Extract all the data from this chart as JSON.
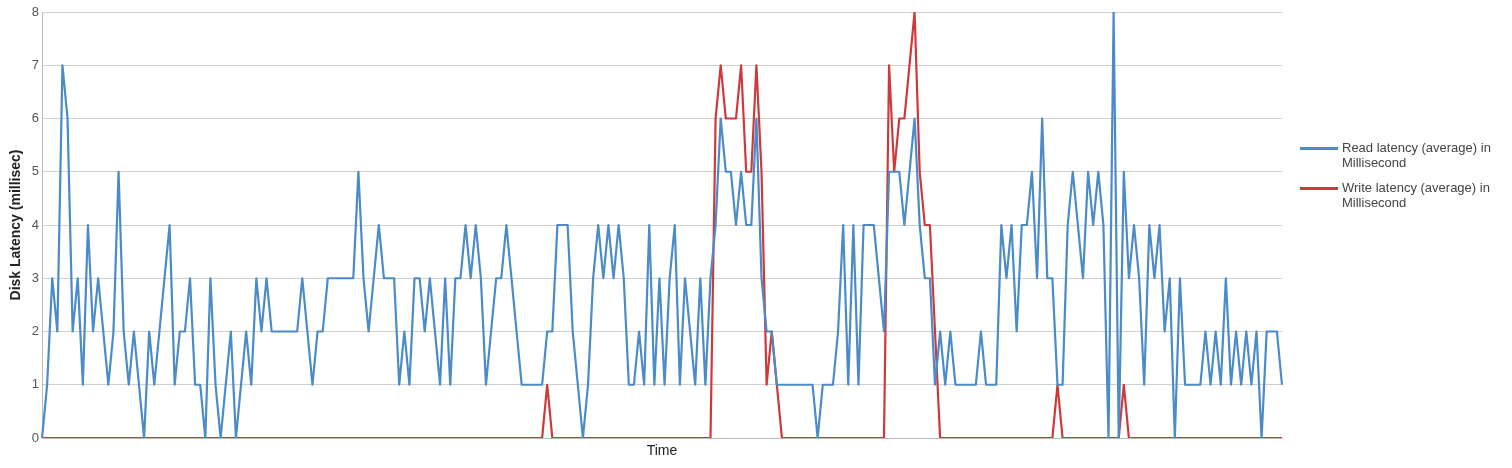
{
  "chart_data": {
    "type": "line",
    "xlabel": "Time",
    "ylabel": "Disk Latency (millisec)",
    "ylim": [
      0,
      8
    ],
    "yticks": [
      0,
      1,
      2,
      3,
      4,
      5,
      6,
      7,
      8
    ],
    "grid": "y",
    "legend": "right",
    "marker": "none",
    "line_style": "solid",
    "categories": [
      null,
      null,
      null,
      null,
      null,
      null,
      null,
      null,
      null,
      null,
      null,
      null,
      null,
      null,
      null,
      null,
      null,
      null,
      null,
      null,
      null,
      null,
      null,
      null,
      null,
      null,
      null,
      null,
      null,
      null,
      null,
      null,
      null,
      null,
      null,
      null,
      null,
      null,
      null,
      null,
      null,
      null,
      null,
      null,
      null,
      null,
      null,
      null,
      null,
      null,
      null,
      null,
      null,
      null,
      null,
      null,
      null,
      null,
      null,
      null,
      null,
      null,
      null,
      null,
      null,
      null,
      null,
      null,
      null,
      null,
      null,
      null,
      null,
      null,
      null,
      null,
      null,
      null,
      null,
      null,
      null,
      null,
      null,
      null,
      null,
      null,
      null,
      null,
      null,
      null,
      null,
      null,
      null,
      null,
      null,
      null,
      null,
      null,
      null,
      null,
      null,
      null,
      null,
      null,
      null,
      null,
      null,
      null,
      null,
      null,
      null,
      null,
      null,
      null,
      null,
      null,
      null,
      null,
      null,
      null,
      null,
      null,
      null,
      null,
      null,
      null,
      null,
      null,
      null,
      null,
      null,
      null,
      null,
      null,
      null,
      null,
      null,
      null,
      null,
      null,
      null,
      null,
      null,
      null,
      null,
      null,
      null,
      null,
      null,
      null,
      null,
      null,
      null,
      null,
      null,
      null,
      null,
      null,
      null,
      null,
      null,
      null,
      null,
      null,
      null,
      null,
      null,
      null,
      null,
      null,
      null,
      null,
      null,
      null,
      null,
      null,
      null,
      null,
      null,
      null,
      null,
      null,
      null,
      null,
      null,
      null,
      null,
      null,
      null,
      null,
      null,
      null,
      null,
      null,
      null,
      null,
      null,
      null,
      null,
      null,
      null,
      null,
      null,
      null,
      null,
      null,
      null,
      null,
      null,
      null,
      null,
      null,
      null,
      null,
      null,
      null,
      null,
      null,
      null,
      null,
      null,
      null,
      null,
      null,
      null,
      null,
      null,
      null,
      null,
      null,
      null,
      null,
      null,
      null,
      null,
      null,
      null,
      null,
      null,
      null,
      null,
      null,
      null,
      null
    ],
    "series": [
      {
        "name": "Read latency (average) in Millisecond",
        "color": "#4a8bc8",
        "values": [
          0,
          1,
          3,
          2,
          7,
          6,
          2,
          3,
          1,
          4,
          2,
          3,
          2,
          1,
          2,
          5,
          2,
          1,
          2,
          1,
          0,
          2,
          1,
          2,
          3,
          4,
          1,
          2,
          2,
          3,
          1,
          1,
          0,
          3,
          1,
          0,
          1,
          2,
          0,
          1,
          2,
          1,
          3,
          2,
          3,
          2,
          2,
          2,
          2,
          2,
          2,
          3,
          2,
          1,
          2,
          2,
          3,
          3,
          3,
          3,
          3,
          3,
          5,
          3,
          2,
          3,
          4,
          3,
          3,
          3,
          1,
          2,
          1,
          3,
          3,
          2,
          3,
          2,
          1,
          3,
          1,
          3,
          3,
          4,
          3,
          4,
          3,
          1,
          2,
          3,
          3,
          4,
          3,
          2,
          1,
          1,
          1,
          1,
          1,
          2,
          2,
          4,
          4,
          4,
          2,
          1,
          0,
          1,
          3,
          4,
          3,
          4,
          3,
          4,
          3,
          1,
          1,
          2,
          1,
          4,
          1,
          3,
          1,
          3,
          4,
          1,
          3,
          2,
          1,
          3,
          1,
          3,
          4,
          6,
          5,
          5,
          4,
          5,
          4,
          4,
          6,
          3,
          2,
          2,
          1,
          1,
          1,
          1,
          1,
          1,
          1,
          1,
          0,
          1,
          1,
          1,
          2,
          4,
          1,
          4,
          1,
          4,
          4,
          4,
          3,
          2,
          5,
          5,
          5,
          4,
          5,
          6,
          4,
          3,
          3,
          1,
          2,
          1,
          2,
          1,
          1,
          1,
          1,
          1,
          2,
          1,
          1,
          1,
          4,
          3,
          4,
          2,
          4,
          4,
          5,
          3,
          6,
          3,
          3,
          1,
          1,
          4,
          5,
          4,
          3,
          5,
          4,
          5,
          4,
          0,
          8,
          0,
          5,
          3,
          4,
          3,
          1,
          4,
          3,
          4,
          2,
          3,
          0,
          3,
          1,
          1,
          1,
          1,
          2,
          1,
          2,
          1,
          3,
          1,
          2,
          1,
          2,
          1,
          2,
          0,
          2,
          2,
          2,
          1
        ]
      },
      {
        "name": "Write latency (average) in Millisecond",
        "color": "#d0393b",
        "values": [
          0,
          0,
          0,
          0,
          0,
          0,
          0,
          0,
          0,
          0,
          0,
          0,
          0,
          0,
          0,
          0,
          0,
          0,
          0,
          0,
          0,
          0,
          0,
          0,
          0,
          0,
          0,
          0,
          0,
          0,
          0,
          0,
          0,
          0,
          0,
          0,
          0,
          0,
          0,
          0,
          0,
          0,
          0,
          0,
          0,
          0,
          0,
          0,
          0,
          0,
          0,
          0,
          0,
          0,
          0,
          0,
          0,
          0,
          0,
          0,
          0,
          0,
          0,
          0,
          0,
          0,
          0,
          0,
          0,
          0,
          0,
          0,
          0,
          0,
          0,
          0,
          0,
          0,
          0,
          0,
          0,
          0,
          0,
          0,
          0,
          0,
          0,
          0,
          0,
          0,
          0,
          0,
          0,
          0,
          0,
          0,
          0,
          0,
          0,
          1,
          0,
          0,
          0,
          0,
          0,
          0,
          0,
          0,
          0,
          0,
          0,
          0,
          0,
          0,
          0,
          0,
          0,
          0,
          0,
          0,
          0,
          0,
          0,
          0,
          0,
          0,
          0,
          0,
          0,
          0,
          0,
          0,
          6,
          7,
          6,
          6,
          6,
          7,
          5,
          5,
          7,
          5,
          1,
          2,
          1,
          0,
          0,
          0,
          0,
          0,
          0,
          0,
          0,
          0,
          0,
          0,
          0,
          0,
          0,
          0,
          0,
          0,
          0,
          0,
          0,
          0,
          7,
          5,
          6,
          6,
          7,
          8,
          5,
          4,
          4,
          2,
          0,
          0,
          0,
          0,
          0,
          0,
          0,
          0,
          0,
          0,
          0,
          0,
          0,
          0,
          0,
          0,
          0,
          0,
          0,
          0,
          0,
          0,
          0,
          1,
          0,
          0,
          0,
          0,
          0,
          0,
          0,
          0,
          0,
          0,
          0,
          0,
          1,
          0,
          0,
          0,
          0,
          0,
          0,
          0,
          0,
          0,
          0,
          0,
          0,
          0,
          0,
          0,
          0,
          0,
          0,
          0,
          0,
          0,
          0,
          0,
          0,
          0,
          0,
          0,
          0,
          0,
          0,
          0
        ]
      }
    ]
  }
}
